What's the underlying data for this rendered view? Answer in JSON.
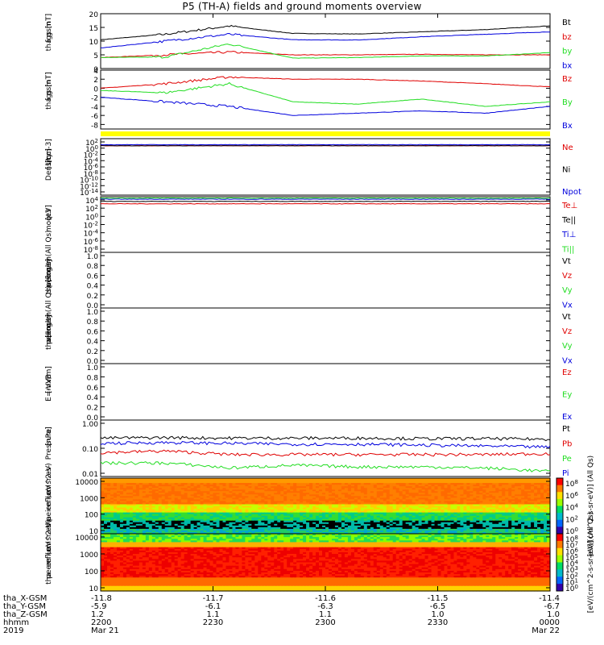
{
  "title": "P5 (TH-A) fields and ground moments overview",
  "colors": {
    "black": "#000000",
    "red": "#e00000",
    "green": "#22dd22",
    "blue": "#0000dd",
    "yellow": "#ffff00"
  },
  "chart_data": [
    {
      "id": "fgs_gsm",
      "type": "line",
      "ylabel": [
        "tha",
        "fgs",
        "gsm",
        "[nT]"
      ],
      "ylim": [
        0,
        20
      ],
      "yticks": [
        0,
        5,
        10,
        15,
        20
      ],
      "series": [
        {
          "name": "Bt",
          "color": "#000000",
          "values": [
            10.5,
            12.5,
            15.5,
            12.8,
            12.6,
            13.4,
            14.2,
            15.6
          ]
        },
        {
          "name": "bz",
          "color": "#e00000",
          "values": [
            4.0,
            5.0,
            6.0,
            5.0,
            5.0,
            5.2,
            5.0,
            5.0
          ]
        },
        {
          "name": "by",
          "color": "#22dd22",
          "values": [
            4.0,
            4.2,
            9.0,
            3.8,
            4.0,
            4.6,
            4.6,
            5.8
          ]
        },
        {
          "name": "bx",
          "color": "#0000dd",
          "values": [
            7.5,
            10.0,
            12.5,
            10.5,
            10.4,
            11.6,
            12.5,
            13.4
          ]
        }
      ]
    },
    {
      "id": "fgs_gsm_comp",
      "type": "line",
      "ylabel": [
        "tha",
        "fgs",
        "gsm",
        "[nT]"
      ],
      "ylim": [
        -9,
        4
      ],
      "yticks": [
        -8,
        -6,
        -4,
        -2,
        0,
        2,
        4
      ],
      "series": [
        {
          "name": "Bz",
          "color": "#e00000",
          "values": [
            0.0,
            1.0,
            2.5,
            2.0,
            2.0,
            1.6,
            1.0,
            0.3
          ]
        },
        {
          "name": "By",
          "color": "#22dd22",
          "values": [
            -0.5,
            -1.0,
            1.0,
            -3.0,
            -3.5,
            -2.4,
            -4.0,
            -3.0
          ]
        },
        {
          "name": "Bx",
          "color": "#0000dd",
          "values": [
            -2.0,
            -3.0,
            -4.0,
            -6.0,
            -5.5,
            -5.0,
            -5.5,
            -4.0
          ]
        }
      ]
    },
    {
      "id": "density",
      "type": "line",
      "log": true,
      "ylabel": [
        "Density",
        "[1/cc]",
        "[cm-3]"
      ],
      "ylim": [
        1e-14,
        100
      ],
      "ytick_labels": [
        "10^2",
        "10^0",
        "10^-2",
        "10^-4",
        "10^-6",
        "10^-8",
        "10^-10",
        "10^-12",
        "10^-14"
      ],
      "series": [
        {
          "name": "Ne",
          "color": "#e00000",
          "values": [
            1.0,
            1.0,
            1.0,
            1.0,
            1.0,
            1.0,
            1.0,
            1.0
          ]
        },
        {
          "name": "Ni",
          "color": "#000000",
          "values": [
            1.0,
            1.0,
            1.0,
            1.0,
            1.0,
            1.0,
            1.0,
            1.0
          ]
        },
        {
          "name": "Npot",
          "color": "#0000dd",
          "values": [
            2.0,
            2.0,
            2.0,
            2.0,
            2.0,
            2.0,
            2.0,
            2.0
          ]
        }
      ]
    },
    {
      "id": "temperature",
      "type": "line",
      "log": true,
      "ylabel": [
        "moqt3",
        "[eV]"
      ],
      "ylim": [
        1e-08,
        10000
      ],
      "ytick_labels": [
        "10^4",
        "10^2",
        "10^0",
        "10^-2",
        "10^-4",
        "10^-6",
        "10^-8"
      ],
      "series": [
        {
          "name": "Te⊥",
          "color": "#e00000",
          "values": [
            300,
            300,
            300,
            300,
            300,
            300,
            300,
            300
          ]
        },
        {
          "name": "Te||",
          "color": "#000000",
          "values": [
            1000,
            1000,
            1000,
            1000,
            1000,
            1000,
            1000,
            1000
          ]
        },
        {
          "name": "Ti⊥",
          "color": "#0000dd",
          "values": [
            3000,
            3000,
            3000,
            3000,
            3000,
            3000,
            3000,
            3000
          ]
        },
        {
          "name": "Ti||",
          "color": "#22dd22",
          "values": [
            5000,
            5000,
            5000,
            5000,
            5000,
            5000,
            5000,
            5000
          ]
        }
      ]
    },
    {
      "id": "peir_velocity",
      "type": "line",
      "ylabel": [
        "tha",
        "peir",
        "velocity",
        "gsm",
        "[km/s] (All Qs)"
      ],
      "ylim": [
        0,
        1
      ],
      "ytick_labels": [
        "1.0",
        "0.8",
        "0.6",
        "0.4",
        "0.2",
        "0.0"
      ],
      "legend": [
        {
          "name": "Vt",
          "color": "#000000"
        },
        {
          "name": "Vz",
          "color": "#e00000"
        },
        {
          "name": "Vy",
          "color": "#22dd22"
        },
        {
          "name": "Vx",
          "color": "#0000dd"
        }
      ]
    },
    {
      "id": "peer_velocity",
      "type": "line",
      "ylabel": [
        "tha",
        "peer",
        "velocity",
        "gsm",
        "[km/s] (All Qs)"
      ],
      "ylim": [
        0,
        1
      ],
      "ytick_labels": [
        "1.0",
        "0.8",
        "0.6",
        "0.4",
        "0.2",
        "0.0"
      ],
      "legend": [
        {
          "name": "Vt",
          "color": "#000000"
        },
        {
          "name": "Vz",
          "color": "#e00000"
        },
        {
          "name": "Vy",
          "color": "#22dd22"
        },
        {
          "name": "Vx",
          "color": "#0000dd"
        }
      ]
    },
    {
      "id": "efield",
      "type": "line",
      "ylabel": [
        "E=-VxB",
        "[mV/m]"
      ],
      "ylim": [
        0,
        1
      ],
      "ytick_labels": [
        "1.0",
        "0.8",
        "0.6",
        "0.4",
        "0.2",
        "0.0"
      ],
      "legend": [
        {
          "name": "Ez",
          "color": "#e00000"
        },
        {
          "name": "Ey",
          "color": "#22dd22"
        },
        {
          "name": "Ex",
          "color": "#0000dd"
        }
      ]
    },
    {
      "id": "pressure",
      "type": "line",
      "log": true,
      "ylabel": [
        "Pressure",
        "[nPa]"
      ],
      "ylim": [
        0.01,
        1
      ],
      "ytick_labels": [
        "1.00",
        "0.10",
        "0.01"
      ],
      "series": [
        {
          "name": "Pt",
          "color": "#000000",
          "values": [
            0.23,
            0.24,
            0.23,
            0.23,
            0.23,
            0.22,
            0.22,
            0.21
          ]
        },
        {
          "name": "Pb",
          "color": "#e00000",
          "values": [
            0.07,
            0.08,
            0.06,
            0.06,
            0.06,
            0.06,
            0.06,
            0.065
          ]
        },
        {
          "name": "Pe",
          "color": "#22dd22",
          "values": [
            0.03,
            0.03,
            0.02,
            0.025,
            0.022,
            0.022,
            0.02,
            0.015
          ]
        },
        {
          "name": "Pi",
          "color": "#0000dd",
          "values": [
            0.15,
            0.16,
            0.15,
            0.14,
            0.14,
            0.13,
            0.12,
            0.11
          ]
        }
      ]
    },
    {
      "id": "peir_spectrogram",
      "type": "heatmap",
      "ylabel": [
        "tha",
        "peir",
        "en",
        "eflux",
        "eV",
        "(cm^2-s-",
        "sr-eV)"
      ],
      "ylim": [
        5,
        20000
      ],
      "ytick_labels": [
        "10000",
        "1000",
        "100",
        "10"
      ]
    },
    {
      "id": "peer_spectrogram",
      "type": "heatmap",
      "ylabel": [
        "tha",
        "peer",
        "en",
        "eflux",
        "eV",
        "(cm^2-s-",
        "sr-eV)"
      ],
      "ylim": [
        8,
        20000
      ],
      "ytick_labels": [
        "10000",
        "1000",
        "100",
        "10"
      ]
    }
  ],
  "colorbars": [
    {
      "label": "[eV/(cm^2-s-sr-eV)] (All Qs)",
      "tick_labels": [
        "10^8",
        "10^6",
        "10^4",
        "10^2",
        "10^0"
      ]
    },
    {
      "label": "[eV/(cm^2-s-sr-eV)] (All Qs)",
      "tick_labels": [
        "10^8",
        "10^7",
        "10^6",
        "10^5",
        "10^4",
        "10^3",
        "10^2",
        "10^1",
        "10^0"
      ]
    }
  ],
  "ephemeris": {
    "rows": [
      {
        "label": "tha_X-GSM",
        "values": [
          "-11.8",
          "-11.7",
          "-11.6",
          "-11.5",
          "-11.4"
        ]
      },
      {
        "label": "tha_Y-GSM",
        "values": [
          "-5.9",
          "-6.1",
          "-6.3",
          "-6.5",
          "-6.7"
        ]
      },
      {
        "label": "tha_Z-GSM",
        "values": [
          "1.2",
          "1.1",
          "1.1",
          "1.0",
          "1.0"
        ]
      },
      {
        "label": "hhmm",
        "values": [
          "2200",
          "2230",
          "2300",
          "2330",
          "0000"
        ]
      },
      {
        "label": "2019",
        "values": [
          "Mar 21",
          "",
          "",
          "",
          "Mar 22"
        ]
      }
    ]
  }
}
